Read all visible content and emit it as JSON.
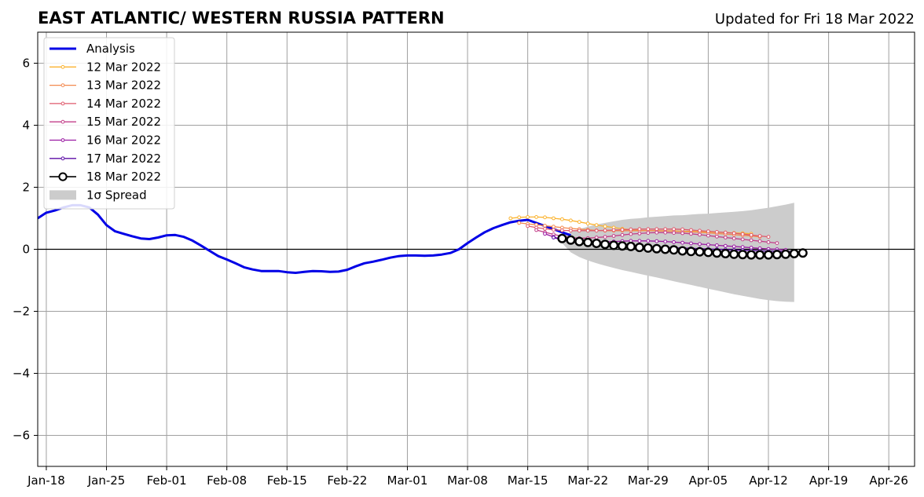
{
  "chart_data": {
    "type": "line",
    "title": "EAST ATLANTIC/ WESTERN RUSSIA PATTERN",
    "subtitle": "Updated for Fri 18 Mar 2022",
    "xlabel": "",
    "ylabel": "",
    "xlim": [
      "2022-01-17",
      "2022-04-29"
    ],
    "ylim": [
      -7,
      7
    ],
    "grid": true,
    "legend_position": "top-left",
    "x_ticks": [
      {
        "date": "2022-01-18",
        "label": "Jan-18"
      },
      {
        "date": "2022-01-25",
        "label": "Jan-25"
      },
      {
        "date": "2022-02-01",
        "label": "Feb-01"
      },
      {
        "date": "2022-02-08",
        "label": "Feb-08"
      },
      {
        "date": "2022-02-15",
        "label": "Feb-15"
      },
      {
        "date": "2022-02-22",
        "label": "Feb-22"
      },
      {
        "date": "2022-03-01",
        "label": "Mar-01"
      },
      {
        "date": "2022-03-08",
        "label": "Mar-08"
      },
      {
        "date": "2022-03-15",
        "label": "Mar-15"
      },
      {
        "date": "2022-03-22",
        "label": "Mar-22"
      },
      {
        "date": "2022-03-29",
        "label": "Mar-29"
      },
      {
        "date": "2022-04-05",
        "label": "Apr-05"
      },
      {
        "date": "2022-04-12",
        "label": "Apr-12"
      },
      {
        "date": "2022-04-19",
        "label": "Apr-19"
      },
      {
        "date": "2022-04-26",
        "label": "Apr-26"
      }
    ],
    "y_ticks": [
      {
        "value": -6,
        "label": "−6"
      },
      {
        "value": -4,
        "label": "−4"
      },
      {
        "value": -2,
        "label": "−2"
      },
      {
        "value": 0,
        "label": "0"
      },
      {
        "value": 2,
        "label": "2"
      },
      {
        "value": 4,
        "label": "4"
      },
      {
        "value": 6,
        "label": "6"
      }
    ],
    "analysis": {
      "name": "Analysis",
      "color": "#0000e6",
      "start": "2022-01-17",
      "values": [
        1.0,
        1.18,
        1.25,
        1.35,
        1.42,
        1.42,
        1.35,
        1.12,
        0.78,
        0.58,
        0.5,
        0.42,
        0.35,
        0.33,
        0.38,
        0.45,
        0.46,
        0.4,
        0.28,
        0.12,
        -0.05,
        -0.22,
        -0.33,
        -0.45,
        -0.58,
        -0.65,
        -0.7,
        -0.7,
        -0.7,
        -0.74,
        -0.76,
        -0.73,
        -0.7,
        -0.71,
        -0.73,
        -0.72,
        -0.66,
        -0.55,
        -0.45,
        -0.4,
        -0.34,
        -0.27,
        -0.22,
        -0.2,
        -0.2,
        -0.21,
        -0.2,
        -0.17,
        -0.12,
        0.0,
        0.2,
        0.38,
        0.55,
        0.68,
        0.78,
        0.87,
        0.92,
        0.95,
        0.85,
        0.75,
        0.65,
        0.55,
        0.45
      ]
    },
    "spread": {
      "name": "1σ Spread",
      "color": "#cccccc",
      "start": "2022-03-19",
      "upper": [
        0.4,
        0.55,
        0.65,
        0.73,
        0.8,
        0.85,
        0.9,
        0.95,
        0.98,
        1.0,
        1.03,
        1.05,
        1.07,
        1.09,
        1.1,
        1.12,
        1.14,
        1.15,
        1.17,
        1.19,
        1.21,
        1.23,
        1.26,
        1.3,
        1.34,
        1.39,
        1.44,
        1.5
      ],
      "lower": [
        0.2,
        -0.1,
        -0.25,
        -0.36,
        -0.45,
        -0.53,
        -0.6,
        -0.67,
        -0.73,
        -0.79,
        -0.85,
        -0.91,
        -0.97,
        -1.03,
        -1.09,
        -1.15,
        -1.21,
        -1.27,
        -1.33,
        -1.39,
        -1.45,
        -1.5,
        -1.55,
        -1.6,
        -1.64,
        -1.67,
        -1.69,
        -1.7
      ]
    },
    "forecasts": [
      {
        "name": "12 Mar 2022",
        "color": "#fbb32f",
        "start": "2022-03-13",
        "values": [
          1.0,
          1.03,
          1.04,
          1.04,
          1.03,
          1.0,
          0.97,
          0.93,
          0.88,
          0.83,
          0.78,
          0.74,
          0.7,
          0.66,
          0.63,
          0.61,
          0.6,
          0.6,
          0.59,
          0.59,
          0.58,
          0.58,
          0.57,
          0.56,
          0.55,
          0.54,
          0.53,
          0.52,
          0.5
        ]
      },
      {
        "name": "13 Mar 2022",
        "color": "#f3894f",
        "start": "2022-03-14",
        "values": [
          0.85,
          0.82,
          0.79,
          0.76,
          0.73,
          0.7,
          0.67,
          0.65,
          0.63,
          0.61,
          0.6,
          0.6,
          0.6,
          0.6,
          0.6,
          0.6,
          0.6,
          0.59,
          0.58,
          0.57,
          0.56,
          0.55,
          0.53,
          0.51,
          0.49,
          0.47,
          0.45,
          0.43,
          0.4
        ]
      },
      {
        "name": "14 Mar 2022",
        "color": "#df5a6c",
        "start": "2022-03-15",
        "values": [
          0.75,
          0.7,
          0.66,
          0.63,
          0.61,
          0.6,
          0.6,
          0.6,
          0.6,
          0.61,
          0.62,
          0.63,
          0.64,
          0.65,
          0.65,
          0.65,
          0.65,
          0.65,
          0.64,
          0.62,
          0.6,
          0.58,
          0.56,
          0.54,
          0.52,
          0.49,
          0.46,
          0.43,
          0.4
        ]
      },
      {
        "name": "15 Mar 2022",
        "color": "#c33d88",
        "start": "2022-03-16",
        "values": [
          0.62,
          0.55,
          0.48,
          0.42,
          0.38,
          0.36,
          0.36,
          0.38,
          0.4,
          0.43,
          0.46,
          0.49,
          0.51,
          0.53,
          0.54,
          0.54,
          0.53,
          0.52,
          0.5,
          0.47,
          0.44,
          0.41,
          0.38,
          0.35,
          0.32,
          0.29,
          0.26,
          0.23,
          0.2
        ]
      },
      {
        "name": "16 Mar 2022",
        "color": "#9a1aa3",
        "start": "2022-03-17",
        "values": [
          0.5,
          0.4,
          0.32,
          0.27,
          0.24,
          0.23,
          0.23,
          0.24,
          0.25,
          0.26,
          0.27,
          0.27,
          0.27,
          0.26,
          0.25,
          0.23,
          0.21,
          0.19,
          0.17,
          0.15,
          0.13,
          0.11,
          0.09,
          0.07,
          0.05,
          0.03,
          0.01,
          0.0,
          -0.02
        ]
      },
      {
        "name": "17 Mar 2022",
        "color": "#5c0ca6",
        "start": "2022-03-18",
        "values": [
          0.38,
          0.3,
          0.24,
          0.2,
          0.17,
          0.15,
          0.13,
          0.12,
          0.11,
          0.1,
          0.09,
          0.08,
          0.07,
          0.06,
          0.05,
          0.04,
          0.03,
          0.02,
          0.01,
          0.0,
          -0.01,
          -0.02,
          -0.03,
          -0.04,
          -0.05,
          -0.06,
          -0.06,
          -0.07,
          -0.07
        ]
      },
      {
        "name": "18 Mar 2022",
        "color": "#000000",
        "start": "2022-03-19",
        "values": [
          0.35,
          0.3,
          0.25,
          0.22,
          0.19,
          0.16,
          0.13,
          0.11,
          0.09,
          0.06,
          0.04,
          0.02,
          0.0,
          -0.02,
          -0.05,
          -0.07,
          -0.08,
          -0.1,
          -0.12,
          -0.14,
          -0.16,
          -0.17,
          -0.18,
          -0.18,
          -0.18,
          -0.17,
          -0.16,
          -0.14,
          -0.12
        ]
      }
    ]
  }
}
